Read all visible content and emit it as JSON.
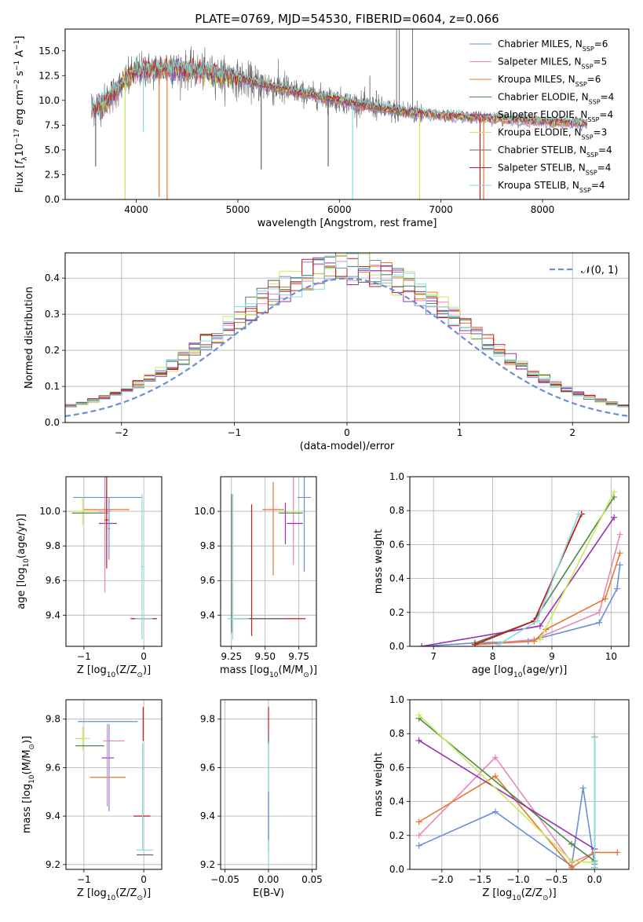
{
  "figure_title": "PLATE=0769, MJD=54530, FIBERID=0604, z=0.066",
  "colors": {
    "chabrier_miles": "#6a8fd9",
    "salpeter_miles": "#ea86b8",
    "kroupa_miles": "#e4792d",
    "chabrier_elodie": "#4c8a4c",
    "salpeter_elodie": "#9b30b0",
    "kroupa_elodie": "#c9e85a",
    "chabrier_stelib": "#666666",
    "salpeter_stelib": "#c81818",
    "kroupa_stelib": "#80dede",
    "gaussian": "#6a8fd9",
    "grid": "#b0b0b0"
  },
  "chart_data": [
    {
      "type": "line",
      "title": "PLATE=0769, MJD=54530, FIBERID=0604, z=0.066",
      "xlabel": "wavelength [Angstrom, rest frame]",
      "ylabel_parts": [
        "Flux [",
        "f",
        "λ",
        "10",
        "−17",
        " erg cm",
        "−2",
        " s",
        "−1",
        " A",
        "−1",
        "]"
      ],
      "xlim": [
        3300,
        8850
      ],
      "ylim": [
        0,
        17.2
      ],
      "xticks": [
        "4000",
        "5000",
        "6000",
        "7000",
        "8000"
      ],
      "xtick_values": [
        4000,
        5000,
        6000,
        7000,
        8000
      ],
      "yticks": [
        "0.0",
        "2.5",
        "5.0",
        "7.5",
        "10.0",
        "12.5",
        "15.0"
      ],
      "ytick_values": [
        0,
        2.5,
        5,
        7.5,
        10,
        12.5,
        15
      ],
      "grid": false,
      "legend": "upper right",
      "legend_entries": [
        {
          "key": "chabrier_miles",
          "label": "Chabrier MILES, N",
          "sub": "SSP",
          "tail": "=6"
        },
        {
          "key": "salpeter_miles",
          "label": "Salpeter MILES, N",
          "sub": "SSP",
          "tail": "=5"
        },
        {
          "key": "kroupa_miles",
          "label": "Kroupa MILES, N",
          "sub": "SSP",
          "tail": "=6"
        },
        {
          "key": "chabrier_elodie",
          "label": "Chabrier ELODIE, N",
          "sub": "SSP",
          "tail": "=4"
        },
        {
          "key": "salpeter_elodie",
          "label": "Salpeter ELODIE, N",
          "sub": "SSP",
          "tail": "=4"
        },
        {
          "key": "kroupa_elodie",
          "label": "Kroupa ELODIE, N",
          "sub": "SSP",
          "tail": "=3"
        },
        {
          "key": "chabrier_stelib",
          "label": "Chabrier STELIB, N",
          "sub": "SSP",
          "tail": "=4"
        },
        {
          "key": "salpeter_stelib",
          "label": "Salpeter STELIB, N",
          "sub": "SSP",
          "tail": "=4"
        },
        {
          "key": "kroupa_stelib",
          "label": "Kroupa STELIB, N",
          "sub": "SSP",
          "tail": "=4"
        }
      ],
      "continuum_knots": [
        [
          3550,
          9.0
        ],
        [
          3700,
          10.0
        ],
        [
          3850,
          11.5
        ],
        [
          4000,
          13.0
        ],
        [
          4300,
          13.2
        ],
        [
          4600,
          13.0
        ],
        [
          5000,
          12.2
        ],
        [
          5500,
          11.0
        ],
        [
          6000,
          10.0
        ],
        [
          6500,
          9.0
        ],
        [
          7000,
          8.5
        ],
        [
          7500,
          8.2
        ],
        [
          8000,
          7.9
        ],
        [
          8400,
          7.7
        ]
      ],
      "observed_range": [
        3560,
        6820
      ],
      "model_range": [
        3560,
        8440
      ],
      "emission_lines": [
        [
          6563,
          17.2
        ],
        [
          6590,
          17.2
        ],
        [
          6720,
          17.2
        ],
        [
          4861,
          13.5
        ],
        [
          6300,
          12.5
        ],
        [
          5577,
          12.0
        ],
        [
          6364,
          11.0
        ]
      ],
      "absorption_dips": [
        [
          4226,
          0.4
        ],
        [
          4304,
          0.0
        ],
        [
          6130,
          0.0
        ],
        [
          3890,
          0.0
        ],
        [
          4070,
          7.0
        ],
        [
          7385,
          0.0
        ],
        [
          7420,
          0.0
        ],
        [
          6790,
          0.0
        ],
        [
          5230,
          3.2
        ],
        [
          5890,
          3.5
        ],
        [
          3600,
          3.5
        ]
      ]
    },
    {
      "type": "histogram",
      "xlabel": "(data-model)/error",
      "ylabel": "Normed distribution",
      "xlim": [
        -2.5,
        2.5
      ],
      "ylim": [
        0,
        0.47
      ],
      "xticks": [
        "−2",
        "−1",
        "0",
        "1",
        "2"
      ],
      "xtick_values": [
        -2,
        -1,
        0,
        1,
        2
      ],
      "yticks": [
        "0.0",
        "0.1",
        "0.2",
        "0.3",
        "0.4"
      ],
      "ytick_values": [
        0,
        0.1,
        0.2,
        0.3,
        0.4
      ],
      "grid": true,
      "legend": "upper right",
      "legend_label": "𝒩(0, 1)",
      "bin_width": 0.1
    },
    {
      "type": "errorbar",
      "xlabel_parts": [
        "Z [log",
        "10",
        "(Z/Z",
        "⊙",
        ")]"
      ],
      "ylabel_parts": [
        "age  [log",
        "10",
        "(age/yr)]"
      ],
      "xlim": [
        -1.3,
        0.3
      ],
      "ylim": [
        9.22,
        10.2
      ],
      "xticks": [
        "−1",
        "0"
      ],
      "xtick_values": [
        -1,
        0
      ],
      "yticks": [
        "9.4",
        "9.6",
        "9.8",
        "10.0"
      ],
      "ytick_values": [
        9.4,
        9.6,
        9.8,
        10.0
      ],
      "grid": true,
      "points": [
        {
          "key": "chabrier_miles",
          "x": -0.6,
          "xerr": 0.58,
          "y": 10.08,
          "yerr": 0.0
        },
        {
          "key": "chabrier_stelib",
          "x": 0.0,
          "xerr": 0.2,
          "y": 9.38,
          "yerr": 0.0
        },
        {
          "key": "salpeter_stelib",
          "x": 0.0,
          "xerr": 0.22,
          "y": 9.38,
          "yerr": 0.0
        },
        {
          "key": "kroupa_stelib",
          "x": 0.0,
          "xerr": 0.15,
          "y": 9.38,
          "yerr": 0.0
        },
        {
          "key": "kroupa_elodie",
          "x": -1.02,
          "xerr": 0.2,
          "y": 10.0,
          "yerr": 0.08
        },
        {
          "key": "chabrier_elodie",
          "x": -0.9,
          "xerr": 0.3,
          "y": 9.99,
          "yerr": 0.0
        },
        {
          "key": "salpeter_elodie",
          "x": -0.6,
          "xerr": 0.15,
          "y": 9.93,
          "yerr": 0.0
        },
        {
          "key": "salpeter_miles",
          "x": -0.65,
          "xerr": 0.1,
          "y": 10.0,
          "yerr": 0.47
        },
        {
          "key": "kroupa_miles",
          "x": -0.62,
          "xerr": 0.38,
          "y": 10.01,
          "yerr": 0.12
        },
        {
          "key": "salpeter_stelib",
          "x": -0.62,
          "xerr": 0.03,
          "y": 9.95,
          "yerr": 0.28
        },
        {
          "key": "chabrier_miles",
          "x": -0.58,
          "xerr": 0.02,
          "y": 9.9,
          "yerr": 0.18
        },
        {
          "key": "kroupa_stelib",
          "x": -0.03,
          "xerr": 0.02,
          "y": 9.68,
          "yerr": 0.42
        }
      ]
    },
    {
      "type": "errorbar",
      "xlabel_parts": [
        "mass [log",
        "10",
        "(M/M",
        "⊙",
        ")]"
      ],
      "ylabel": "",
      "xlim": [
        9.17,
        9.88
      ],
      "ylim": [
        9.22,
        10.2
      ],
      "xticks": [
        "9.25",
        "9.50",
        "9.75"
      ],
      "xtick_values": [
        9.25,
        9.5,
        9.75
      ],
      "yticks": [
        "9.4",
        "9.6",
        "9.8",
        "10.0"
      ],
      "ytick_values": [
        9.4,
        9.6,
        9.8,
        10.0
      ],
      "grid": true,
      "points": [
        {
          "key": "chabrier_miles",
          "x": 9.79,
          "xerr": 0.05,
          "y": 10.08,
          "yerr": 0.0
        },
        {
          "key": "chabrier_miles",
          "x": 9.79,
          "xerr": 0.0,
          "y": 9.95,
          "yerr": 0.3
        },
        {
          "key": "salpeter_miles",
          "x": 9.71,
          "xerr": 0.0,
          "y": 10.01,
          "yerr": 0.32
        },
        {
          "key": "kroupa_miles",
          "x": 9.56,
          "xerr": 0.0,
          "y": 9.9,
          "yerr": 0.27
        },
        {
          "key": "kroupa_miles",
          "x": 9.56,
          "xerr": 0.08,
          "y": 10.01,
          "yerr": 0.0
        },
        {
          "key": "salpeter_elodie",
          "x": 9.65,
          "xerr": 0.0,
          "y": 9.93,
          "yerr": 0.12
        },
        {
          "key": "salpeter_elodie",
          "x": 9.72,
          "xerr": 0.06,
          "y": 9.93,
          "yerr": 0.0
        },
        {
          "key": "kroupa_elodie",
          "x": 9.72,
          "xerr": 0.06,
          "y": 10.0,
          "yerr": 0.0
        },
        {
          "key": "chabrier_elodie",
          "x": 9.69,
          "xerr": 0.09,
          "y": 9.99,
          "yerr": 0.0
        },
        {
          "key": "salpeter_stelib",
          "x": 9.4,
          "xerr": 0.0,
          "y": 9.66,
          "yerr": 0.38
        },
        {
          "key": "salpeter_stelib",
          "x": 9.55,
          "xerr": 0.25,
          "y": 9.38,
          "yerr": 0.0
        },
        {
          "key": "chabrier_stelib",
          "x": 9.25,
          "xerr": 0.0,
          "y": 9.7,
          "yerr": 0.4
        },
        {
          "key": "chabrier_stelib",
          "x": 9.45,
          "xerr": 0.2,
          "y": 9.38,
          "yerr": 0.0
        },
        {
          "key": "kroupa_stelib",
          "x": 9.26,
          "xerr": 0.0,
          "y": 9.68,
          "yerr": 0.42
        },
        {
          "key": "kroupa_stelib",
          "x": 9.3,
          "xerr": 0.08,
          "y": 9.38,
          "yerr": 0.0
        }
      ]
    },
    {
      "type": "line",
      "xlabel_parts": [
        "age  [log",
        "10",
        "(age/yr)]"
      ],
      "ylabel": "mass weight",
      "xlim": [
        6.6,
        10.3
      ],
      "ylim": [
        0,
        1.0
      ],
      "xticks": [
        "7",
        "8",
        "9",
        "10"
      ],
      "xtick_values": [
        7,
        8,
        9,
        10
      ],
      "yticks": [
        "0.0",
        "0.2",
        "0.4",
        "0.6",
        "0.8",
        "1.0"
      ],
      "ytick_values": [
        0,
        0.2,
        0.4,
        0.6,
        0.8,
        1.0
      ],
      "grid": true,
      "series": [
        {
          "key": "chabrier_miles",
          "x": [
            6.8,
            7.7,
            8.6,
            9.8,
            10.1,
            10.15
          ],
          "y": [
            0.0,
            0.02,
            0.03,
            0.14,
            0.34,
            0.48
          ]
        },
        {
          "key": "salpeter_miles",
          "x": [
            7.7,
            8.7,
            9.8,
            10.15
          ],
          "y": [
            0.01,
            0.04,
            0.2,
            0.66
          ]
        },
        {
          "key": "kroupa_miles",
          "x": [
            7.7,
            8.7,
            8.9,
            9.9,
            10.15
          ],
          "y": [
            0.01,
            0.03,
            0.1,
            0.28,
            0.55
          ]
        },
        {
          "key": "chabrier_elodie",
          "x": [
            7.7,
            8.7,
            10.05
          ],
          "y": [
            0.02,
            0.15,
            0.88
          ]
        },
        {
          "key": "salpeter_elodie",
          "x": [
            6.8,
            8.8,
            10.05
          ],
          "y": [
            0.0,
            0.12,
            0.76
          ]
        },
        {
          "key": "kroupa_elodie",
          "x": [
            8.8,
            10.05
          ],
          "y": [
            0.04,
            0.91
          ]
        },
        {
          "key": "chabrier_stelib",
          "x": [
            7.7,
            8.7,
            9.5
          ],
          "y": [
            0.01,
            0.15,
            0.78
          ]
        },
        {
          "key": "salpeter_stelib",
          "x": [
            7.7,
            8.7,
            9.5
          ],
          "y": [
            0.01,
            0.15,
            0.78
          ]
        },
        {
          "key": "kroupa_stelib",
          "x": [
            8.1,
            8.75,
            9.45
          ],
          "y": [
            0.01,
            0.15,
            0.78
          ]
        }
      ]
    },
    {
      "type": "errorbar",
      "xlabel_parts": [
        "Z [log",
        "10",
        "(Z/Z",
        "⊙",
        ")]"
      ],
      "ylabel_parts": [
        "mass [log",
        "10",
        "(M/M",
        "⊙",
        ")]"
      ],
      "xlim": [
        -1.3,
        0.3
      ],
      "ylim": [
        9.18,
        9.88
      ],
      "xticks": [
        "−1",
        "0"
      ],
      "xtick_values": [
        -1,
        0
      ],
      "yticks": [
        "9.2",
        "9.4",
        "9.6",
        "9.8"
      ],
      "ytick_values": [
        9.2,
        9.4,
        9.6,
        9.8
      ],
      "grid": true,
      "points": [
        {
          "key": "chabrier_miles",
          "x": -0.6,
          "xerr": 0.5,
          "y": 9.79,
          "yerr": 0.0
        },
        {
          "key": "kroupa_elodie",
          "x": -1.02,
          "xerr": 0.12,
          "y": 9.72,
          "yerr": 0.05
        },
        {
          "key": "salpeter_miles",
          "x": -0.5,
          "xerr": 0.18,
          "y": 9.71,
          "yerr": 0.0
        },
        {
          "key": "chabrier_elodie",
          "x": -0.9,
          "xerr": 0.24,
          "y": 9.69,
          "yerr": 0.0
        },
        {
          "key": "salpeter_elodie",
          "x": -0.6,
          "xerr": 0.1,
          "y": 9.64,
          "yerr": 0.0
        },
        {
          "key": "kroupa_miles",
          "x": -0.6,
          "xerr": 0.3,
          "y": 9.56,
          "yerr": 0.0
        },
        {
          "key": "salpeter_miles",
          "x": -0.61,
          "xerr": 0.0,
          "y": 9.61,
          "yerr": 0.17
        },
        {
          "key": "chabrier_miles",
          "x": -0.58,
          "xerr": 0.0,
          "y": 9.6,
          "yerr": 0.18
        },
        {
          "key": "salpeter_stelib",
          "x": -0.03,
          "xerr": 0.14,
          "y": 9.4,
          "yerr": 0.0
        },
        {
          "key": "salpeter_stelib",
          "x": -0.01,
          "xerr": 0.0,
          "y": 9.78,
          "yerr": 0.07
        },
        {
          "key": "kroupa_stelib",
          "x": -0.02,
          "xerr": 0.0,
          "y": 9.48,
          "yerr": 0.22
        },
        {
          "key": "kroupa_stelib",
          "x": 0.02,
          "xerr": 0.14,
          "y": 9.26,
          "yerr": 0.0
        },
        {
          "key": "chabrier_stelib",
          "x": 0.02,
          "xerr": 0.14,
          "y": 9.24,
          "yerr": 0.0
        }
      ]
    },
    {
      "type": "errorbar",
      "xlabel": "E(B-V)",
      "ylabel": "",
      "xlim": [
        -0.055,
        0.055
      ],
      "ylim": [
        9.18,
        9.88
      ],
      "xticks": [
        "−0.05",
        "0.00",
        "0.05"
      ],
      "xtick_values": [
        -0.05,
        0,
        0.05
      ],
      "yticks": [
        "9.2",
        "9.4",
        "9.6",
        "9.8"
      ],
      "ytick_values": [
        9.2,
        9.4,
        9.6,
        9.8
      ],
      "grid": true,
      "points": [
        {
          "key": "salpeter_stelib",
          "x": 0.0,
          "xerr": 0.0,
          "y": 9.78,
          "yerr": 0.07
        },
        {
          "key": "chabrier_stelib",
          "x": 0.0,
          "xerr": 0.0,
          "y": 9.5,
          "yerr": 0.25
        },
        {
          "key": "kroupa_stelib",
          "x": 0.0,
          "xerr": 0.0,
          "y": 9.45,
          "yerr": 0.25
        },
        {
          "key": "chabrier_miles",
          "x": 0.0,
          "xerr": 0.0,
          "y": 9.4,
          "yerr": 0.1
        }
      ]
    },
    {
      "type": "line",
      "xlabel_parts": [
        "Z [log",
        "10",
        "(Z/Z",
        "⊙",
        ")]"
      ],
      "ylabel": "mass weight",
      "xlim": [
        -2.42,
        0.45
      ],
      "ylim": [
        0,
        1.0
      ],
      "xticks": [
        "−2.0",
        "−1.5",
        "−1.0",
        "−0.5",
        "0.0"
      ],
      "xtick_values": [
        -2,
        -1.5,
        -1,
        -0.5,
        0
      ],
      "yticks": [
        "0.0",
        "0.2",
        "0.4",
        "0.6",
        "0.8",
        "1.0"
      ],
      "ytick_values": [
        0,
        0.2,
        0.4,
        0.6,
        0.8,
        1.0
      ],
      "grid": true,
      "series": [
        {
          "key": "chabrier_miles",
          "x": [
            -2.3,
            -1.3,
            -0.3,
            -0.15,
            0.0
          ],
          "y": [
            0.14,
            0.34,
            0.02,
            0.48,
            0.03
          ]
        },
        {
          "key": "salpeter_miles",
          "x": [
            -2.3,
            -1.3,
            -0.3,
            0.0
          ],
          "y": [
            0.2,
            0.66,
            0.04,
            0.1
          ]
        },
        {
          "key": "kroupa_miles",
          "x": [
            -2.3,
            -1.3,
            -0.3,
            0.0,
            0.3
          ],
          "y": [
            0.28,
            0.55,
            0.01,
            0.1,
            0.1
          ]
        },
        {
          "key": "chabrier_elodie",
          "x": [
            -2.3,
            -0.3,
            0.0
          ],
          "y": [
            0.89,
            0.15,
            0.05
          ]
        },
        {
          "key": "salpeter_elodie",
          "x": [
            -2.3,
            0.0,
            0.0
          ],
          "y": [
            0.76,
            0.12,
            0.12
          ]
        },
        {
          "key": "kroupa_elodie",
          "x": [
            -2.3,
            -0.3,
            0.0
          ],
          "y": [
            0.91,
            0.05,
            0.04
          ]
        },
        {
          "key": "chabrier_stelib",
          "x": [
            0.0,
            0.0
          ],
          "y": [
            0.78,
            0.01
          ]
        },
        {
          "key": "salpeter_stelib",
          "x": [
            0.0,
            0.0
          ],
          "y": [
            0.78,
            0.01
          ]
        },
        {
          "key": "kroupa_stelib",
          "x": [
            0.0,
            0.0
          ],
          "y": [
            0.78,
            0.01
          ]
        }
      ]
    }
  ]
}
